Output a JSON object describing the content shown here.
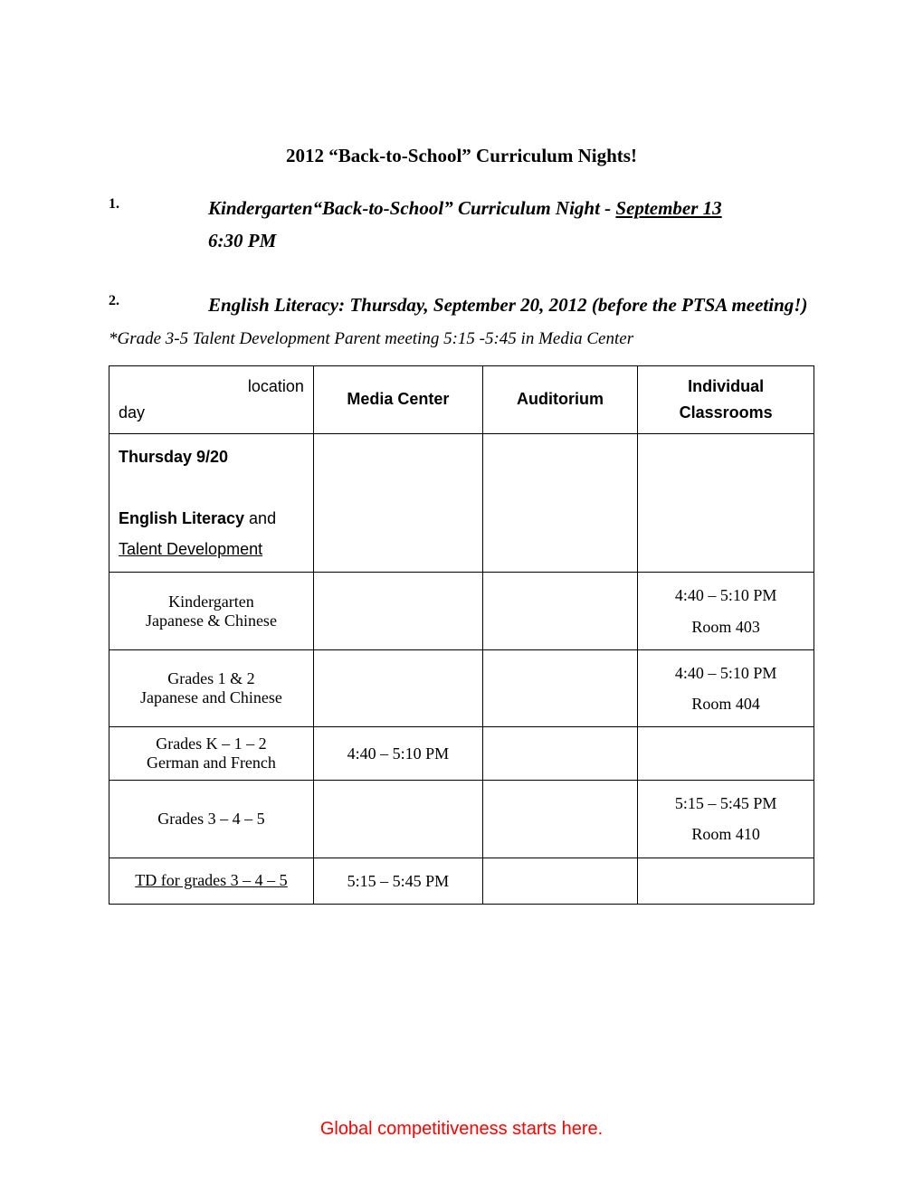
{
  "title": "2012 “Back-to-School” Curriculum Nights!",
  "items": [
    {
      "num": "1.",
      "prefix_bolditalic": "Kindergarten",
      "mid_italic": "“Back-to-School” Curriculum Night - ",
      "date_underline": "September 13",
      "line2": "6:30 PM"
    },
    {
      "num": "2.",
      "full": "English Literacy: Thursday, September 20, 2012 (before the PTSA meeting!)"
    }
  ],
  "note": "*Grade 3-5 Talent Development Parent meeting 5:15 -5:45 in Media Center",
  "table": {
    "header": {
      "location_label": "location",
      "day_label": "day",
      "cols": [
        "Media Center",
        "Auditorium",
        "Individual Classrooms"
      ]
    },
    "title_row": {
      "line1": "Thursday 9/20",
      "line2a": "English Literacy",
      "line2b": " and",
      "line3": "Talent Development"
    },
    "rows": [
      {
        "desc_lines": [
          "Kindergarten",
          "Japanese & Chinese"
        ],
        "cells": [
          "",
          "",
          "4:40 – 5:10 PM\nRoom 403"
        ]
      },
      {
        "desc_lines": [
          "Grades 1 & 2",
          "Japanese and Chinese"
        ],
        "cells": [
          "",
          "",
          "4:40 – 5:10 PM\nRoom 404"
        ]
      },
      {
        "desc_lines": [
          "Grades K – 1 – 2",
          "German and French"
        ],
        "cells": [
          "4:40 – 5:10 PM",
          "",
          ""
        ]
      },
      {
        "desc_lines": [
          "Grades 3 – 4 – 5"
        ],
        "cells": [
          "",
          "",
          "5:15 – 5:45 PM\nRoom 410"
        ]
      },
      {
        "desc_lines_underline": [
          "TD for grades 3 – 4 – 5"
        ],
        "cells": [
          "5:15 – 5:45 PM",
          "",
          ""
        ]
      }
    ]
  },
  "footer": {
    "text": "Global competitiveness starts here.",
    "color": "#ff0000"
  },
  "colwidths": [
    "29%",
    "24%",
    "22%",
    "25%"
  ]
}
